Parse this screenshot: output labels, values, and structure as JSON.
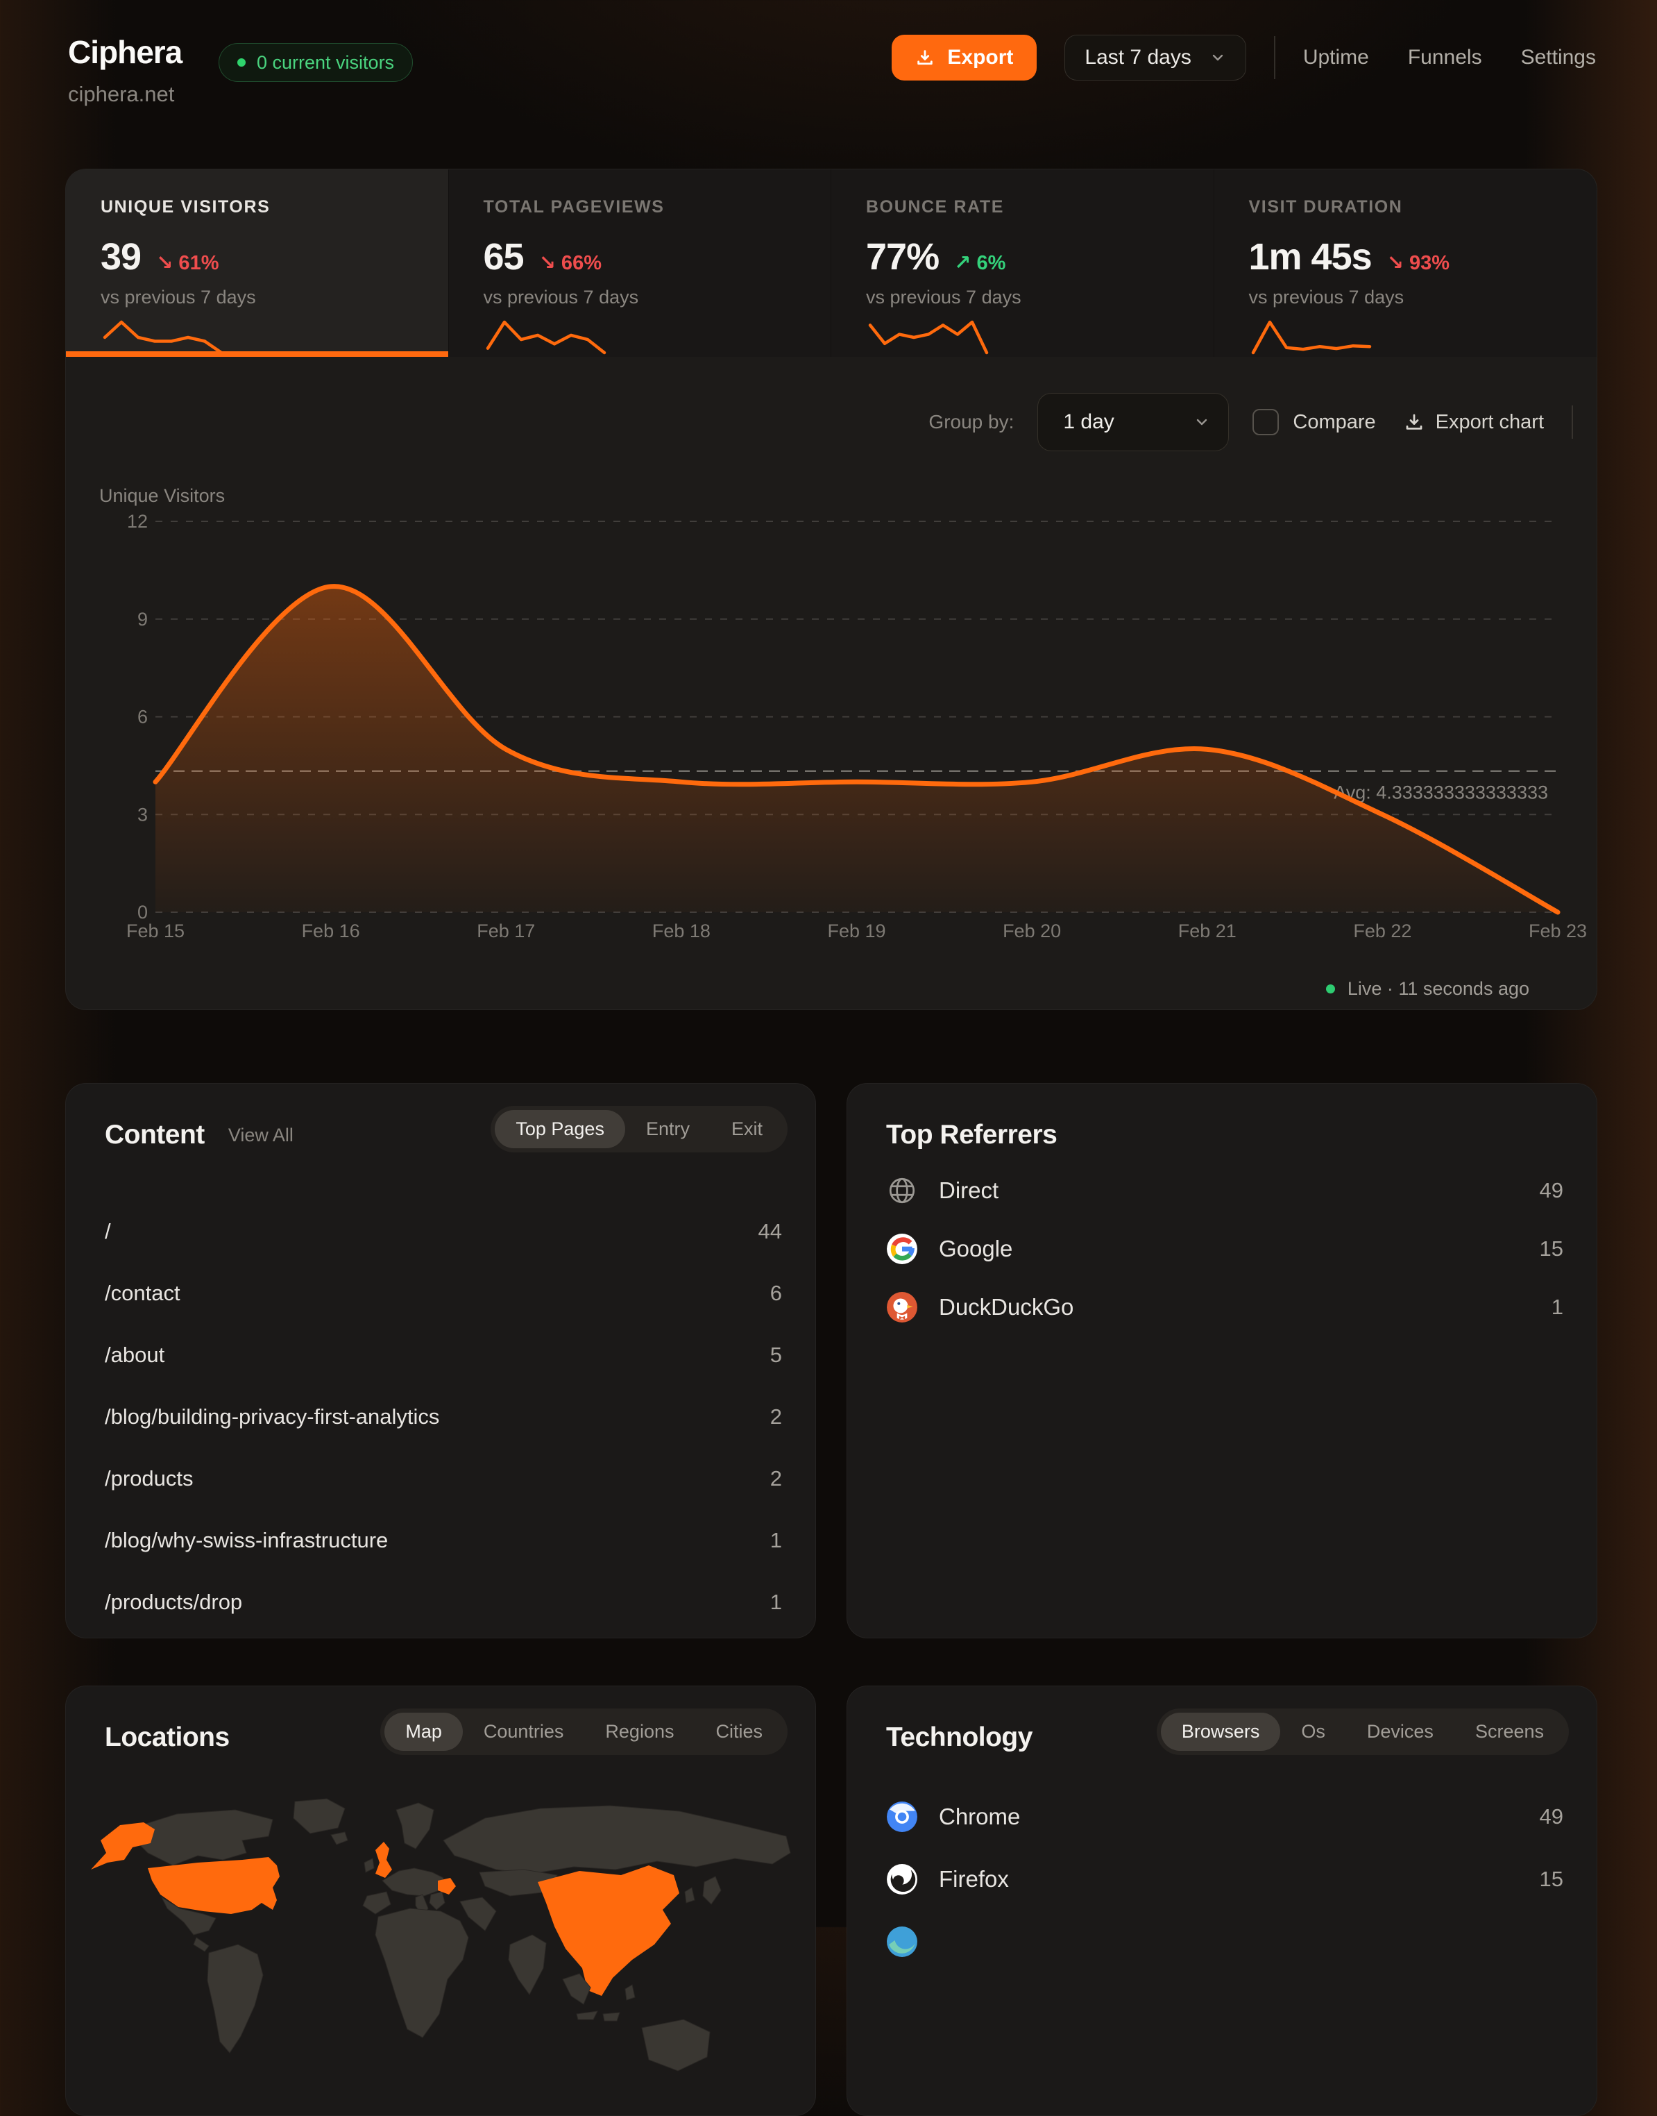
{
  "header": {
    "title": "Ciphera",
    "domain": "ciphera.net",
    "visitors_badge": "0 current visitors",
    "export_label": "Export",
    "date_range": "Last 7 days",
    "nav": [
      "Uptime",
      "Funnels",
      "Settings"
    ]
  },
  "stats": [
    {
      "label": "UNIQUE VISITORS",
      "value": "39",
      "arrow": "↘",
      "pct": "61%",
      "dir": "down",
      "compare": "vs previous 7 days",
      "active": true,
      "spark": [
        5,
        9,
        5,
        4,
        4,
        5,
        4,
        1
      ]
    },
    {
      "label": "TOTAL PAGEVIEWS",
      "value": "65",
      "arrow": "↘",
      "pct": "66%",
      "dir": "down",
      "compare": "vs previous 7 days",
      "active": false,
      "spark": [
        3,
        9,
        5,
        6,
        4,
        6,
        5,
        2
      ]
    },
    {
      "label": "BOUNCE RATE",
      "value": "77%",
      "arrow": "↗",
      "pct": "6%",
      "dir": "up",
      "compare": "vs previous 7 days",
      "active": false,
      "spark": [
        70,
        40,
        55,
        50,
        55,
        70,
        55,
        75,
        25
      ]
    },
    {
      "label": "VISIT DURATION",
      "value": "1m 45s",
      "arrow": "↘",
      "pct": "93%",
      "dir": "down",
      "compare": "vs previous 7 days",
      "active": false,
      "spark": [
        10,
        100,
        25,
        20,
        28,
        22,
        30,
        28
      ]
    }
  ],
  "chart_controls": {
    "group_by_label": "Group by:",
    "group_by_value": "1 day",
    "compare_label": "Compare",
    "export_chart_label": "Export chart"
  },
  "chart_data": {
    "type": "area",
    "title": "",
    "ylabel": "Unique Visitors",
    "x": [
      "Feb 15",
      "Feb 16",
      "Feb 17",
      "Feb 18",
      "Feb 19",
      "Feb 20",
      "Feb 21",
      "Feb 22",
      "Feb 23"
    ],
    "values": [
      4,
      10,
      5,
      4,
      4,
      4,
      5,
      3,
      0
    ],
    "ylim": [
      0,
      12
    ],
    "yticks": [
      0,
      3,
      6,
      9,
      12
    ],
    "avg": 4.333333333333333,
    "avg_label": "Avg: 4.333333333333333",
    "line_color": "#ff6a0d",
    "grid": "horizontal-dashed",
    "legend": "none"
  },
  "live_label": "Live · 11 seconds ago",
  "content": {
    "title": "Content",
    "view_all": "View All",
    "tabs": [
      "Top Pages",
      "Entry",
      "Exit"
    ],
    "active_tab": "Top Pages",
    "rows": [
      {
        "path": "/",
        "count": "44"
      },
      {
        "path": "/contact",
        "count": "6"
      },
      {
        "path": "/about",
        "count": "5"
      },
      {
        "path": "/blog/building-privacy-first-analytics",
        "count": "2"
      },
      {
        "path": "/products",
        "count": "2"
      },
      {
        "path": "/blog/why-swiss-infrastructure",
        "count": "1"
      },
      {
        "path": "/products/drop",
        "count": "1"
      }
    ]
  },
  "referrers": {
    "title": "Top Referrers",
    "rows": [
      {
        "name": "Direct",
        "count": "49",
        "icon": "globe"
      },
      {
        "name": "Google",
        "count": "15",
        "icon": "google"
      },
      {
        "name": "DuckDuckGo",
        "count": "1",
        "icon": "duckduckgo"
      }
    ]
  },
  "locations": {
    "title": "Locations",
    "tabs": [
      "Map",
      "Countries",
      "Regions",
      "Cities"
    ],
    "active_tab": "Map",
    "map_highlight_color": "#ff6a0d"
  },
  "technology": {
    "title": "Technology",
    "tabs": [
      "Browsers",
      "Os",
      "Devices",
      "Screens"
    ],
    "active_tab": "Browsers",
    "rows": [
      {
        "name": "Chrome",
        "count": "49",
        "icon": "chrome"
      },
      {
        "name": "Firefox",
        "count": "15",
        "icon": "firefox"
      },
      {
        "name": "",
        "count": "",
        "icon": "browser-partial"
      }
    ]
  },
  "colors": {
    "accent": "#ff6a0d",
    "positive": "#34d27b",
    "negative": "#ef4d4d",
    "live_dot": "#2ecc71"
  }
}
